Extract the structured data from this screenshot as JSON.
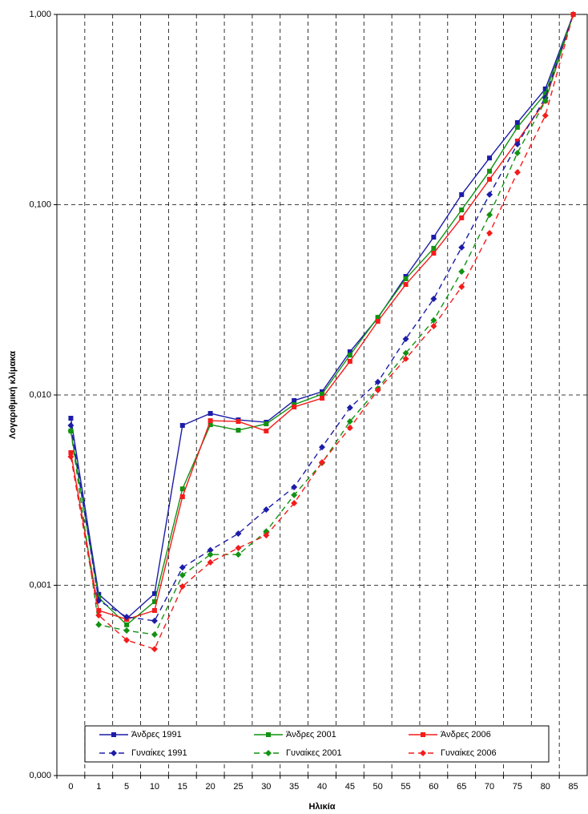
{
  "chart_data": {
    "type": "line",
    "x_label": "Ηλικία",
    "y_label": "Λογαριθμική κλίμακα",
    "categories": [
      "0",
      "1",
      "5",
      "10",
      "15",
      "20",
      "25",
      "30",
      "35",
      "40",
      "45",
      "50",
      "55",
      "60",
      "65",
      "70",
      "75",
      "80",
      "85"
    ],
    "log_scale": true,
    "grid": true,
    "legend": "bottom",
    "ylim": [
      0.0001,
      1
    ],
    "yticks": [
      {
        "value": 0.0001,
        "label": "0,000"
      },
      {
        "value": 0.001,
        "label": "0,001"
      },
      {
        "value": 0.01,
        "label": "0,010"
      },
      {
        "value": 0.1,
        "label": "0,100"
      },
      {
        "value": 1,
        "label": "1,000"
      }
    ],
    "series": [
      {
        "name": "Άνδρες 1991",
        "color": "#1c1ca8",
        "dashed": false,
        "marker": "square",
        "values": [
          0.00755,
          0.000896,
          0.000668,
          0.000904,
          0.00692,
          0.008,
          0.0074,
          0.00719,
          0.00935,
          0.0104,
          0.01687,
          0.0254,
          0.042,
          0.0675,
          0.113,
          0.176,
          0.27,
          0.406,
          1
        ]
      },
      {
        "name": "Άνδρες 2001",
        "color": "#129212",
        "dashed": false,
        "marker": "square",
        "values": [
          0.00647,
          0.00086,
          0.00062,
          0.00082,
          0.00321,
          0.00698,
          0.00653,
          0.00705,
          0.0089,
          0.0101,
          0.0162,
          0.0256,
          0.0408,
          0.059,
          0.0939,
          0.15,
          0.255,
          0.383,
          1
        ]
      },
      {
        "name": "Άνδρες 2006",
        "color": "#f41b1b",
        "dashed": false,
        "marker": "square",
        "values": [
          0.00498,
          0.000737,
          0.000662,
          0.000737,
          0.00292,
          0.00733,
          0.00726,
          0.00647,
          0.00865,
          0.00962,
          0.01503,
          0.0244,
          0.0381,
          0.0556,
          0.0853,
          0.136,
          0.216,
          0.351,
          1
        ]
      },
      {
        "name": "Γυναίκες 1991",
        "color": "#1c1ca8",
        "dashed": true,
        "marker": "diamond",
        "values": [
          0.00692,
          0.00083,
          0.000682,
          0.00065,
          0.00124,
          0.00153,
          0.00187,
          0.0025,
          0.00328,
          0.00532,
          0.00857,
          0.0117,
          0.0197,
          0.032,
          0.0596,
          0.113,
          0.208,
          0.365,
          1
        ]
      },
      {
        "name": "Γυναίκες 2001",
        "color": "#129212",
        "dashed": true,
        "marker": "diamond",
        "values": [
          0.00647,
          0.00062,
          0.000578,
          0.000551,
          0.00113,
          0.00145,
          0.00145,
          0.00192,
          0.00298,
          0.00439,
          0.00726,
          0.0108,
          0.0166,
          0.0247,
          0.0445,
          0.0885,
          0.187,
          0.351,
          1
        ]
      },
      {
        "name": "Γυναίκες 2006",
        "color": "#f41b1b",
        "dashed": true,
        "marker": "diamond",
        "values": [
          0.00474,
          0.000695,
          0.000515,
          0.000462,
          0.000986,
          0.00132,
          0.00157,
          0.00183,
          0.0027,
          0.00443,
          0.00672,
          0.0106,
          0.0155,
          0.023,
          0.037,
          0.0709,
          0.148,
          0.294,
          1
        ]
      }
    ]
  }
}
